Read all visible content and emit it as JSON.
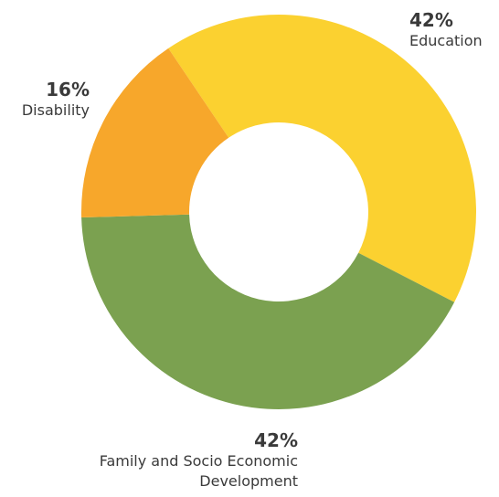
{
  "chart_data": {
    "type": "pie",
    "variant": "donut",
    "categories": [
      "Education",
      "Family and Socio Economic Development",
      "Disability"
    ],
    "values": [
      42,
      42,
      16
    ],
    "value_labels": [
      "42%",
      "42%",
      "16%"
    ],
    "colors": [
      "#fbd130",
      "#7ba150",
      "#f7a72b"
    ],
    "legend": "none"
  }
}
